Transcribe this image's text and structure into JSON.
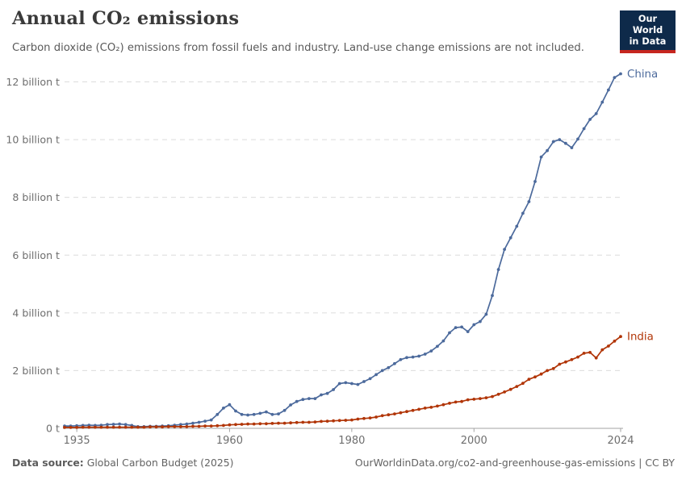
{
  "header": {
    "title": "Annual CO₂ emissions",
    "subtitle": "Carbon dioxide (CO₂) emissions from fossil fuels and industry. Land-use change emissions are not included."
  },
  "logo": {
    "line1": "Our World",
    "line2": "in Data",
    "bg_color": "#0e2a4a",
    "bar_color": "#c6261f"
  },
  "footer": {
    "source_label": "Data source:",
    "source_text": " Global Carbon Budget (2025)",
    "right_text": "OurWorldinData.org/co2-and-greenhouse-gas-emissions | CC BY"
  },
  "chart_data": {
    "type": "line",
    "title": "Annual CO₂ emissions",
    "xlabel": "",
    "ylabel": "",
    "unit": "billion tonnes of CO₂ per year",
    "grid": "horizontal dashed",
    "legend_position": "labels at end of lines",
    "x": {
      "start": 1933,
      "end": 2024,
      "step": 1
    },
    "x_ticks": [
      "1935",
      "1960",
      "1980",
      "2000",
      "2024"
    ],
    "x_tick_values": [
      1935,
      1960,
      1980,
      2000,
      2024
    ],
    "ylim": [
      0,
      12.6
    ],
    "y_ticks": [
      {
        "value": 0,
        "label": "0 t"
      },
      {
        "value": 2,
        "label": "2 billion t"
      },
      {
        "value": 4,
        "label": "4 billion t"
      },
      {
        "value": 6,
        "label": "6 billion t"
      },
      {
        "value": 8,
        "label": "8 billion t"
      },
      {
        "value": 10,
        "label": "10 billion t"
      },
      {
        "value": 12,
        "label": "12 billion t"
      }
    ],
    "series": [
      {
        "name": "China",
        "color": "#4c6a9c",
        "values": [
          0.08,
          0.08,
          0.09,
          0.1,
          0.11,
          0.1,
          0.11,
          0.13,
          0.14,
          0.15,
          0.13,
          0.1,
          0.06,
          0.06,
          0.07,
          0.07,
          0.08,
          0.09,
          0.11,
          0.13,
          0.15,
          0.18,
          0.21,
          0.25,
          0.29,
          0.48,
          0.7,
          0.82,
          0.6,
          0.48,
          0.46,
          0.48,
          0.52,
          0.57,
          0.48,
          0.5,
          0.62,
          0.81,
          0.93,
          1.0,
          1.03,
          1.03,
          1.16,
          1.21,
          1.34,
          1.55,
          1.58,
          1.55,
          1.52,
          1.62,
          1.72,
          1.86,
          2.0,
          2.1,
          2.24,
          2.38,
          2.45,
          2.47,
          2.5,
          2.57,
          2.68,
          2.84,
          3.03,
          3.31,
          3.49,
          3.51,
          3.35,
          3.59,
          3.7,
          3.95,
          4.6,
          5.5,
          6.2,
          6.6,
          7.0,
          7.45,
          7.85,
          8.55,
          9.4,
          9.62,
          9.93,
          10.0,
          9.87,
          9.72,
          10.02,
          10.38,
          10.7,
          10.9,
          11.3,
          11.72,
          12.15,
          12.28
        ]
      },
      {
        "name": "India",
        "color": "#b13507",
        "values": [
          0.03,
          0.03,
          0.03,
          0.04,
          0.04,
          0.04,
          0.04,
          0.04,
          0.04,
          0.04,
          0.04,
          0.04,
          0.04,
          0.04,
          0.05,
          0.05,
          0.05,
          0.06,
          0.06,
          0.06,
          0.06,
          0.07,
          0.07,
          0.08,
          0.08,
          0.09,
          0.1,
          0.12,
          0.13,
          0.14,
          0.15,
          0.15,
          0.16,
          0.16,
          0.17,
          0.18,
          0.18,
          0.19,
          0.2,
          0.21,
          0.21,
          0.22,
          0.24,
          0.25,
          0.26,
          0.27,
          0.28,
          0.29,
          0.32,
          0.34,
          0.36,
          0.39,
          0.44,
          0.47,
          0.5,
          0.54,
          0.58,
          0.62,
          0.66,
          0.7,
          0.73,
          0.77,
          0.82,
          0.87,
          0.91,
          0.93,
          0.99,
          1.01,
          1.03,
          1.06,
          1.1,
          1.18,
          1.26,
          1.35,
          1.45,
          1.56,
          1.7,
          1.78,
          1.88,
          2.0,
          2.07,
          2.22,
          2.3,
          2.38,
          2.47,
          2.6,
          2.63,
          2.44,
          2.72,
          2.85,
          3.02,
          3.18
        ]
      }
    ]
  }
}
